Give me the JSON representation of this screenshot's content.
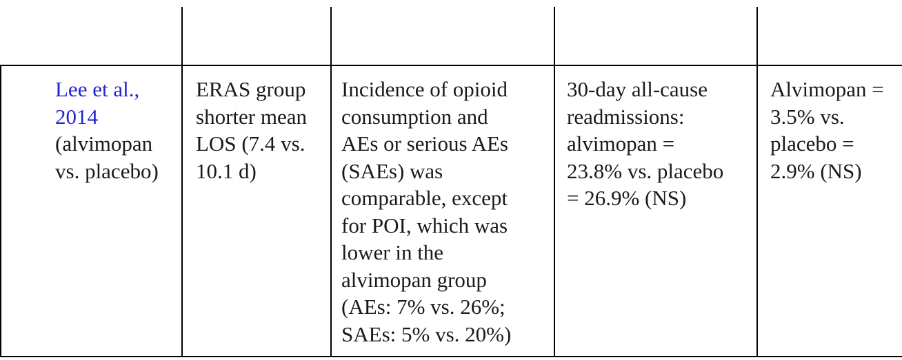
{
  "table": {
    "row": {
      "study": {
        "link_lines": [
          "Lee et al.,",
          "2014"
        ],
        "lines": [
          "(alvimopan",
          "vs. placebo)"
        ]
      },
      "los": {
        "lines": [
          "ERAS group",
          "shorter mean",
          "LOS (7.4 vs.",
          "10.1 d)"
        ]
      },
      "opioid_aes": {
        "lines": [
          "Incidence of opioid",
          "consumption and",
          "AEs or serious AEs",
          "(SAEs) was",
          "comparable, except",
          "for POI, which was",
          "lower in the",
          "alvimopan group",
          "(AEs: 7% vs. 26%;",
          "SAEs: 5% vs. 20%)"
        ]
      },
      "readmissions": {
        "lines": [
          "30-day all-cause",
          "readmissions:",
          "alvimopan =",
          "23.8% vs. placebo",
          "= 26.9% (NS)"
        ]
      },
      "last": {
        "lines": [
          "Alvimopan =",
          "3.5% vs.",
          "placebo =",
          "2.9% (NS)"
        ]
      }
    }
  }
}
